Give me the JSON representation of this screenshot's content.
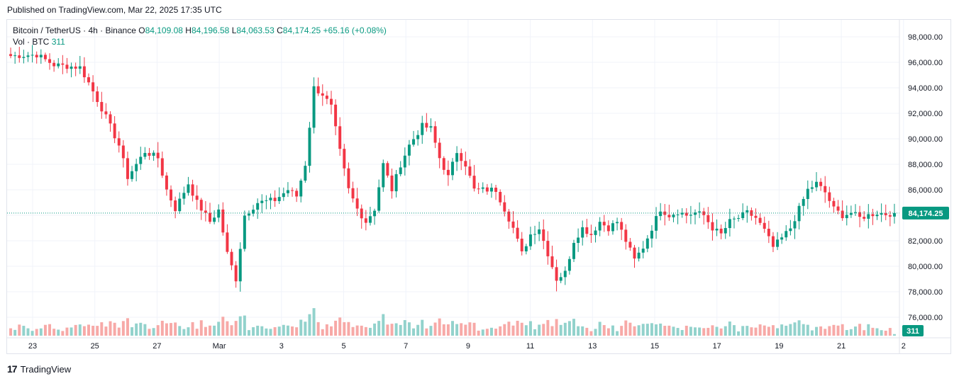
{
  "header": {
    "published": "Published on TradingView.com, Mar 22, 2025 17:35 UTC"
  },
  "legend": {
    "symbol": "Bitcoin / TetherUS · 4h · Binance",
    "o_label": "O",
    "o_value": "84,109.08",
    "h_label": "H",
    "h_value": "84,196.58",
    "l_label": "L",
    "l_value": "84,063.53",
    "c_label": "C",
    "c_value": "84,174.25",
    "change": "+65.16 (+0.08%)",
    "vol_label": "Vol · BTC",
    "vol_value": "311"
  },
  "footer": {
    "logo": "17",
    "brand": "TradingView"
  },
  "colors": {
    "up": "#089981",
    "down": "#f23645",
    "vol_up": "#92d2cc",
    "vol_down": "#f7a9a7",
    "grid": "#f0f3fa"
  },
  "chart_data": {
    "type": "candlestick",
    "symbol": "Bitcoin / TetherUS",
    "interval": "4h",
    "exchange": "Binance",
    "ylim": [
      75000,
      99000
    ],
    "y_ticks": [
      "98,000.00",
      "96,000.00",
      "94,000.00",
      "92,000.00",
      "90,000.00",
      "88,000.00",
      "86,000.00",
      "84,000.00",
      "82,000.00",
      "80,000.00",
      "78,000.00",
      "76,000.00"
    ],
    "y_tick_values": [
      98000,
      96000,
      94000,
      92000,
      90000,
      88000,
      86000,
      84000,
      82000,
      80000,
      78000,
      76000
    ],
    "x_ticks": [
      "23",
      "25",
      "27",
      "Mar",
      "3",
      "5",
      "7",
      "9",
      "11",
      "13",
      "15",
      "17",
      "19",
      "21",
      "2"
    ],
    "last_price": "84,174.25",
    "last_price_value": 84174.25,
    "last_volume": "311",
    "vol_max": 310,
    "anchors": [
      [
        0,
        96500
      ],
      [
        6,
        96600
      ],
      [
        10,
        95800
      ],
      [
        16,
        95600
      ],
      [
        18,
        94400
      ],
      [
        22,
        91700
      ],
      [
        25,
        89500
      ],
      [
        27,
        87000
      ],
      [
        31,
        89000
      ],
      [
        34,
        88500
      ],
      [
        36,
        86000
      ],
      [
        38,
        84500
      ],
      [
        41,
        86500
      ],
      [
        43,
        85000
      ],
      [
        46,
        83500
      ],
      [
        48,
        84400
      ],
      [
        50,
        81000
      ],
      [
        52,
        79000
      ],
      [
        54,
        84000
      ],
      [
        57,
        85000
      ],
      [
        61,
        85200
      ],
      [
        64,
        86000
      ],
      [
        66,
        85500
      ],
      [
        68,
        88000
      ],
      [
        70,
        94000
      ],
      [
        72,
        93500
      ],
      [
        74,
        92500
      ],
      [
        76,
        89000
      ],
      [
        78,
        86000
      ],
      [
        80,
        84500
      ],
      [
        82,
        83500
      ],
      [
        84,
        84500
      ],
      [
        86,
        88000
      ],
      [
        88,
        86000
      ],
      [
        90,
        88000
      ],
      [
        92,
        89500
      ],
      [
        95,
        91000
      ],
      [
        97,
        90800
      ],
      [
        99,
        88500
      ],
      [
        101,
        87000
      ],
      [
        103,
        89000
      ],
      [
        105,
        88000
      ],
      [
        107,
        86000
      ],
      [
        110,
        86000
      ],
      [
        112,
        86000
      ],
      [
        114,
        84500
      ],
      [
        116,
        83000
      ],
      [
        118,
        81000
      ],
      [
        120,
        82500
      ],
      [
        122,
        83000
      ],
      [
        124,
        81000
      ],
      [
        126,
        79000
      ],
      [
        128,
        79500
      ],
      [
        130,
        82000
      ],
      [
        132,
        83000
      ],
      [
        134,
        82500
      ],
      [
        136,
        83500
      ],
      [
        138,
        83000
      ],
      [
        140,
        83500
      ],
      [
        142,
        82000
      ],
      [
        144,
        80500
      ],
      [
        146,
        81500
      ],
      [
        148,
        83000
      ],
      [
        150,
        84500
      ],
      [
        152,
        84000
      ],
      [
        154,
        84300
      ],
      [
        156,
        84000
      ],
      [
        158,
        84200
      ],
      [
        160,
        84000
      ],
      [
        162,
        83000
      ],
      [
        164,
        82500
      ],
      [
        166,
        83500
      ],
      [
        168,
        83800
      ],
      [
        170,
        84200
      ],
      [
        172,
        83800
      ],
      [
        174,
        82800
      ],
      [
        176,
        81500
      ],
      [
        178,
        82200
      ],
      [
        180,
        83000
      ],
      [
        182,
        84500
      ],
      [
        184,
        86000
      ],
      [
        186,
        86500
      ],
      [
        188,
        85800
      ],
      [
        190,
        84500
      ],
      [
        192,
        84000
      ],
      [
        194,
        84200
      ],
      [
        196,
        83800
      ],
      [
        198,
        84000
      ],
      [
        200,
        84200
      ],
      [
        202,
        84100
      ],
      [
        204,
        84174
      ]
    ]
  }
}
